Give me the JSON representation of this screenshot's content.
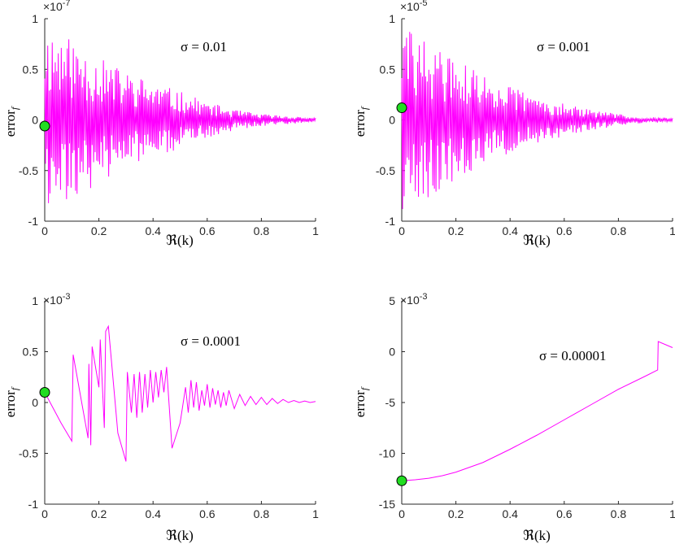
{
  "chart_data": [
    {
      "type": "line",
      "title": "",
      "annotation": "σ = 0.01",
      "xlabel": "ℜ(k)",
      "ylabel": "error",
      "ylabel_sub": "f",
      "exponent": "×10",
      "exponent_power": "-7",
      "xlim": [
        0,
        1
      ],
      "ylim": [
        -1,
        1
      ],
      "xticks": [
        "0",
        "0.2",
        "0.4",
        "0.6",
        "0.8",
        "1"
      ],
      "yticks": [
        "-1",
        "-0.5",
        "0",
        "0.5",
        "1"
      ],
      "line_color": "#ff00ff",
      "marker_color": "#22dd22",
      "marker": {
        "x": 0,
        "y": -0.06
      },
      "shape": "oscillation",
      "envelope": [
        [
          0,
          0.95
        ],
        [
          0.1,
          0.8
        ],
        [
          0.2,
          0.62
        ],
        [
          0.3,
          0.48
        ],
        [
          0.4,
          0.38
        ],
        [
          0.5,
          0.28
        ],
        [
          0.6,
          0.18
        ],
        [
          0.7,
          0.1
        ],
        [
          0.8,
          0.06
        ],
        [
          0.9,
          0.04
        ],
        [
          1.0,
          0.02
        ]
      ],
      "cycles": 180,
      "seed": 11
    },
    {
      "type": "line",
      "title": "",
      "annotation": "σ = 0.001",
      "xlabel": "ℜ(k)",
      "ylabel": "error",
      "ylabel_sub": "f",
      "exponent": "×10",
      "exponent_power": "-5",
      "xlim": [
        0,
        1
      ],
      "ylim": [
        -1,
        1
      ],
      "xticks": [
        "0",
        "0.2",
        "0.4",
        "0.6",
        "0.8",
        "1"
      ],
      "yticks": [
        "-1",
        "-0.5",
        "0",
        "0.5",
        "1"
      ],
      "line_color": "#ff00ff",
      "marker_color": "#22dd22",
      "marker": {
        "x": 0,
        "y": 0.12
      },
      "shape": "oscillation",
      "envelope": [
        [
          0,
          0.95
        ],
        [
          0.1,
          0.78
        ],
        [
          0.2,
          0.6
        ],
        [
          0.3,
          0.45
        ],
        [
          0.4,
          0.34
        ],
        [
          0.5,
          0.24
        ],
        [
          0.6,
          0.16
        ],
        [
          0.7,
          0.1
        ],
        [
          0.8,
          0.06
        ],
        [
          0.9,
          0.03
        ],
        [
          1.0,
          0.02
        ]
      ],
      "cycles": 170,
      "seed": 29
    },
    {
      "type": "line",
      "title": "",
      "annotation": "σ = 0.0001",
      "xlabel": "ℜ(k)",
      "ylabel": "error",
      "ylabel_sub": "f",
      "exponent": "×10",
      "exponent_power": "-3",
      "xlim": [
        0,
        1
      ],
      "ylim": [
        -1,
        1
      ],
      "xticks": [
        "0",
        "0.2",
        "0.4",
        "0.6",
        "0.8",
        "1"
      ],
      "yticks": [
        "-1",
        "-0.5",
        "0",
        "0.5",
        "1"
      ],
      "line_color": "#ff00ff",
      "marker_color": "#22dd22",
      "marker": {
        "x": 0,
        "y": 0.1
      },
      "shape": "polyline",
      "points": [
        [
          0,
          0.1
        ],
        [
          0.03,
          -0.05
        ],
        [
          0.06,
          -0.2
        ],
        [
          0.1,
          -0.38
        ],
        [
          0.105,
          0.47
        ],
        [
          0.16,
          -0.35
        ],
        [
          0.163,
          0.38
        ],
        [
          0.17,
          -0.42
        ],
        [
          0.175,
          0.55
        ],
        [
          0.2,
          0.15
        ],
        [
          0.205,
          0.62
        ],
        [
          0.22,
          -0.25
        ],
        [
          0.225,
          0.7
        ],
        [
          0.235,
          0.75
        ],
        [
          0.27,
          -0.3
        ],
        [
          0.3,
          -0.58
        ],
        [
          0.305,
          0.3
        ],
        [
          0.32,
          -0.1
        ],
        [
          0.33,
          0.28
        ],
        [
          0.34,
          -0.15
        ],
        [
          0.35,
          0.3
        ],
        [
          0.36,
          -0.1
        ],
        [
          0.37,
          0.28
        ],
        [
          0.38,
          -0.05
        ],
        [
          0.39,
          0.32
        ],
        [
          0.4,
          0.0
        ],
        [
          0.41,
          0.3
        ],
        [
          0.42,
          0.05
        ],
        [
          0.43,
          0.32
        ],
        [
          0.44,
          0.1
        ],
        [
          0.45,
          0.35
        ],
        [
          0.47,
          -0.45
        ],
        [
          0.5,
          -0.2
        ],
        [
          0.52,
          0.15
        ],
        [
          0.53,
          -0.1
        ],
        [
          0.54,
          0.22
        ],
        [
          0.55,
          -0.05
        ],
        [
          0.56,
          0.2
        ],
        [
          0.57,
          -0.08
        ],
        [
          0.58,
          0.12
        ],
        [
          0.59,
          -0.03
        ],
        [
          0.6,
          0.18
        ],
        [
          0.61,
          -0.05
        ],
        [
          0.62,
          0.14
        ],
        [
          0.63,
          -0.02
        ],
        [
          0.64,
          0.12
        ],
        [
          0.65,
          -0.05
        ],
        [
          0.66,
          0.1
        ],
        [
          0.67,
          -0.03
        ],
        [
          0.68,
          0.12
        ],
        [
          0.7,
          -0.06
        ],
        [
          0.72,
          0.08
        ],
        [
          0.74,
          -0.03
        ],
        [
          0.76,
          0.06
        ],
        [
          0.78,
          -0.02
        ],
        [
          0.8,
          0.05
        ],
        [
          0.82,
          -0.02
        ],
        [
          0.84,
          0.04
        ],
        [
          0.86,
          -0.01
        ],
        [
          0.88,
          0.03
        ],
        [
          0.9,
          0.0
        ],
        [
          0.92,
          0.02
        ],
        [
          0.94,
          0.0
        ],
        [
          0.96,
          0.015
        ],
        [
          0.98,
          0.0
        ],
        [
          1.0,
          0.01
        ]
      ],
      "seed": 0
    },
    {
      "type": "line",
      "title": "",
      "annotation": "σ = 0.00001",
      "xlabel": "ℜ(k)",
      "ylabel": "error",
      "ylabel_sub": "f",
      "exponent": "×10",
      "exponent_power": "-3",
      "xlim": [
        0,
        1
      ],
      "ylim": [
        -15,
        5
      ],
      "xticks": [
        "0",
        "0.2",
        "0.4",
        "0.6",
        "0.8",
        "1"
      ],
      "yticks": [
        "-15",
        "-10",
        "-5",
        "0",
        "5"
      ],
      "line_color": "#ff00ff",
      "marker_color": "#22dd22",
      "marker": {
        "x": 0,
        "y": -12.7
      },
      "shape": "polyline",
      "points": [
        [
          0,
          -12.7
        ],
        [
          0.05,
          -12.6
        ],
        [
          0.1,
          -12.45
        ],
        [
          0.15,
          -12.2
        ],
        [
          0.2,
          -11.85
        ],
        [
          0.3,
          -10.9
        ],
        [
          0.4,
          -9.6
        ],
        [
          0.5,
          -8.2
        ],
        [
          0.6,
          -6.7
        ],
        [
          0.7,
          -5.2
        ],
        [
          0.8,
          -3.7
        ],
        [
          0.9,
          -2.4
        ],
        [
          0.945,
          -1.8
        ],
        [
          0.947,
          1.0
        ],
        [
          1.0,
          0.4
        ]
      ],
      "seed": 0
    }
  ]
}
